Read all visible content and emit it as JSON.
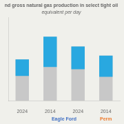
{
  "chart_data": {
    "type": "bar",
    "title": "nd gross natural gas production in select tight oil",
    "subtitle": "equivalent per day",
    "categories": [
      "2024",
      "2014",
      "2024",
      "2014"
    ],
    "series": [
      {
        "color": "#c8c8c8",
        "values": [
          0.55,
          0.85,
          0.72,
          0.6
        ]
      },
      {
        "color": "#29a8e0",
        "values": [
          0.22,
          0.4,
          0.3,
          0.28
        ]
      }
    ],
    "annotations": [
      {
        "text": "Eagle Ford",
        "color": "#4472c4",
        "categories": [
          1,
          2
        ]
      },
      {
        "text": "Perm",
        "color": "#ed7d31",
        "categories": [
          3
        ]
      }
    ],
    "ylim": [
      0,
      1.1
    ],
    "grid": false,
    "legend": false,
    "tick_labels": "x"
  }
}
